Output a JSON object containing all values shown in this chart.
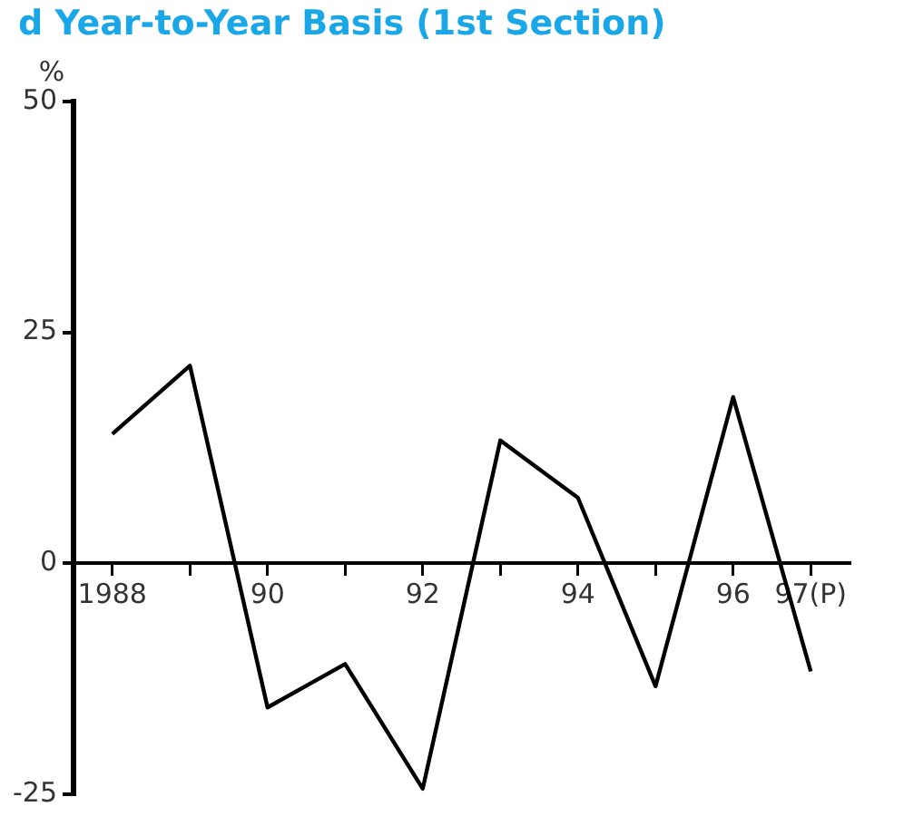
{
  "chart_data": {
    "type": "line",
    "title": "d Year-to-Year Basis (1st Section)",
    "ylabel": "%",
    "categories": [
      "1988",
      null,
      "90",
      null,
      "92",
      null,
      "94",
      null,
      "96",
      "97(P)"
    ],
    "series": [
      {
        "color": "#000000",
        "values": [
          14,
          21.4,
          -15.6,
          -10.9,
          -24.4,
          13.3,
          7.1,
          -13.3,
          18,
          -11.7
        ]
      }
    ],
    "ylim": [
      -25,
      50
    ],
    "yticks": [
      -25,
      0,
      25,
      50
    ],
    "grid": false,
    "legend": false,
    "marker": "none",
    "line_style": "solid"
  }
}
